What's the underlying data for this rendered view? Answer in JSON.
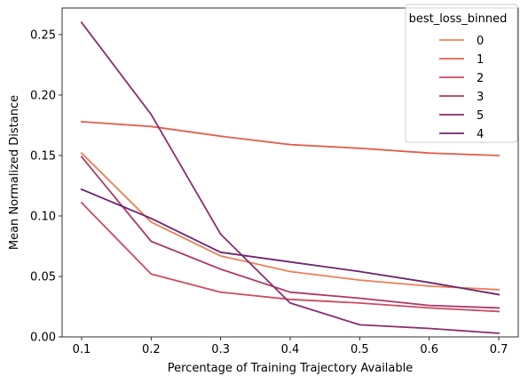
{
  "chart_data": {
    "type": "line",
    "xlabel": "Percentage of Training Trajectory Available",
    "ylabel": "Mean Normalized Distance",
    "x": [
      0.1,
      0.2,
      0.3,
      0.4,
      0.5,
      0.6,
      0.7
    ],
    "xticks": [
      "0.1",
      "0.2",
      "0.3",
      "0.4",
      "0.5",
      "0.6",
      "0.7"
    ],
    "yticks": [
      "0.00",
      "0.05",
      "0.10",
      "0.15",
      "0.20",
      "0.25"
    ],
    "xlim": [
      0.072,
      0.728
    ],
    "ylim": [
      0.0,
      0.272
    ],
    "grid": false,
    "legend": {
      "title": "best_loss_binned",
      "placement": "top-right"
    },
    "series": [
      {
        "name": "0",
        "color": "#eb8055",
        "values": [
          0.152,
          0.095,
          0.067,
          0.054,
          0.047,
          0.042,
          0.039
        ]
      },
      {
        "name": "1",
        "color": "#e0604d",
        "values": [
          0.178,
          0.174,
          0.166,
          0.159,
          0.156,
          0.152,
          0.15
        ]
      },
      {
        "name": "2",
        "color": "#cf4a60",
        "values": [
          0.111,
          0.052,
          0.037,
          0.031,
          0.028,
          0.024,
          0.021
        ]
      },
      {
        "name": "3",
        "color": "#ad3664",
        "values": [
          0.149,
          0.079,
          0.056,
          0.037,
          0.032,
          0.026,
          0.024
        ]
      },
      {
        "name": "5",
        "color": "#8c2d6c",
        "values": [
          0.26,
          0.184,
          0.085,
          0.028,
          0.01,
          0.007,
          0.003
        ]
      },
      {
        "name": "4",
        "color": "#6b2470",
        "values": [
          0.122,
          0.098,
          0.07,
          0.062,
          0.054,
          0.045,
          0.035
        ]
      }
    ]
  }
}
